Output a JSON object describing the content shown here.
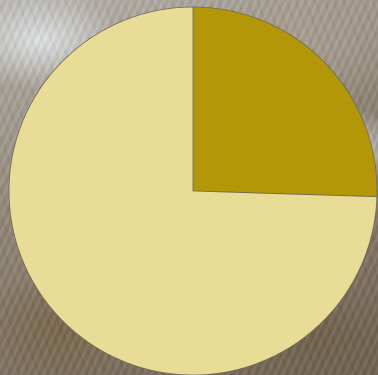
{
  "chart_data": {
    "type": "pie",
    "slices": [
      {
        "value": 25.5,
        "color": "#b39709"
      },
      {
        "value": 74.5,
        "color": "#e8dc96"
      }
    ],
    "start_angle": "12 o'clock",
    "direction": "clockwise",
    "legend": "none",
    "title": ""
  }
}
